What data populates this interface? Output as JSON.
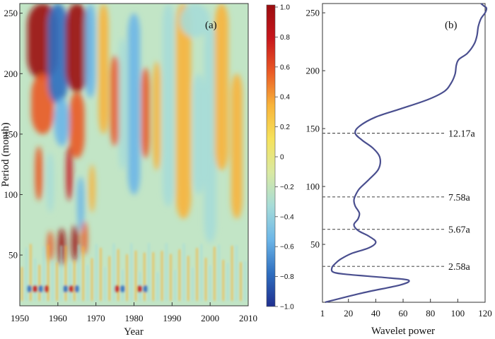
{
  "chart_data": [
    {
      "type": "heatmap",
      "panel_label": "(a)",
      "xlabel": "Year",
      "ylabel": "Period (month)",
      "xlim": [
        1950,
        2010
      ],
      "ylim": [
        8,
        258
      ],
      "xticks": [
        "1950",
        "1960",
        "1970",
        "1980",
        "1990",
        "2000",
        "2010"
      ],
      "yticks": [
        "50",
        "100",
        "150",
        "200",
        "250"
      ],
      "colorbar": {
        "range": [
          -1.0,
          1.0
        ],
        "ticks": [
          "1.0",
          "0.8",
          "0.6",
          "0.4",
          "0.2",
          "0",
          "−0.2",
          "−0.4",
          "−0.6",
          "−0.8",
          "−1.0"
        ],
        "colors": [
          "#1f2f8f",
          "#2f6fc0",
          "#6cb6e8",
          "#a6dcd8",
          "#d9e9a2",
          "#f6e25b",
          "#f8b43a",
          "#ea5a25",
          "#c7161c",
          "#9b0d10"
        ]
      }
    },
    {
      "type": "line",
      "panel_label": "(b)",
      "xlabel": "Wavelet power",
      "ylabel": "",
      "xlim": [
        1,
        120
      ],
      "ylim": [
        0,
        258
      ],
      "xticks": [
        "1",
        "20",
        "40",
        "60",
        "80",
        "100",
        "120"
      ],
      "yticks": [
        "50",
        "100",
        "150",
        "200",
        "250"
      ],
      "line_color": "#4a4f8f",
      "series": [
        {
          "points": [
            [
              3,
              0
            ],
            [
              30,
              8
            ],
            [
              58,
              15
            ],
            [
              64,
              19
            ],
            [
              50,
              21
            ],
            [
              20,
              24
            ],
            [
              9,
              26
            ],
            [
              8,
              30
            ],
            [
              10,
              33
            ],
            [
              14,
              37
            ],
            [
              22,
              42
            ],
            [
              35,
              47
            ],
            [
              40,
              52
            ],
            [
              35,
              57
            ],
            [
              27,
              62
            ],
            [
              24,
              67
            ],
            [
              27,
              72
            ],
            [
              28,
              77
            ],
            [
              25,
              83
            ],
            [
              24,
              88
            ],
            [
              25,
              92
            ],
            [
              28,
              98
            ],
            [
              35,
              106
            ],
            [
              42,
              115
            ],
            [
              43,
              125
            ],
            [
              38,
              133
            ],
            [
              30,
              140
            ],
            [
              25,
              146
            ],
            [
              28,
              152
            ],
            [
              40,
              160
            ],
            [
              58,
              167
            ],
            [
              78,
              175
            ],
            [
              90,
              182
            ],
            [
              95,
              189
            ],
            [
              98,
              197
            ],
            [
              99,
              205
            ],
            [
              101,
              210
            ],
            [
              107,
              215
            ],
            [
              112,
              223
            ],
            [
              114,
              230
            ],
            [
              115,
              238
            ],
            [
              117,
              245
            ],
            [
              120,
              250
            ],
            [
              121,
              254
            ],
            [
              119,
              256
            ],
            [
              117,
              258
            ]
          ]
        }
      ],
      "annotations": [
        {
          "y": 146,
          "label": "12.17a"
        },
        {
          "y": 91,
          "label": "7.58a"
        },
        {
          "y": 63,
          "label": "5.67a"
        },
        {
          "y": 31,
          "label": "2.58a"
        }
      ]
    }
  ]
}
